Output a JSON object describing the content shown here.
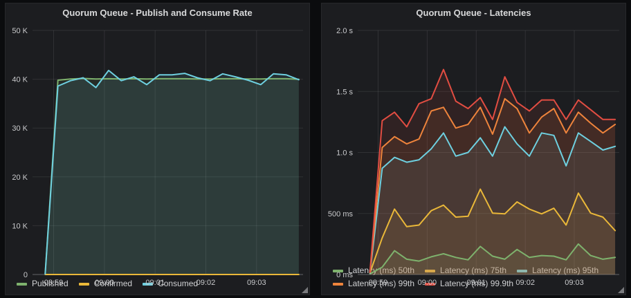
{
  "theme": {
    "page_bg": "#0b0c0e",
    "panel_bg": "#1c1d20",
    "title_color": "#d8d9da",
    "tick_color": "#c9cacc",
    "grid_color": "rgba(255,255,255,0.09)",
    "axis_color": "rgba(255,255,255,0.32)"
  },
  "panels": [
    {
      "title": "Quorum Queue - Publish and Consume Rate",
      "chart_data": {
        "type": "area",
        "title": "Quorum Queue - Publish and Consume Rate",
        "xlabel": "",
        "ylabel": "",
        "unit": "messages/s",
        "grid": true,
        "legend_position": "bottom",
        "fill_opacity": 0.1,
        "ylim": [
          0,
          50000
        ],
        "y_ticks": [
          {
            "label": "0",
            "v": 0
          },
          {
            "label": "10 K",
            "v": 10000
          },
          {
            "label": "20 K",
            "v": 20000
          },
          {
            "label": "30 K",
            "v": 30000
          },
          {
            "label": "40 K",
            "v": 40000
          },
          {
            "label": "50 K",
            "v": 50000
          }
        ],
        "x_domain_s": [
          -25,
          295
        ],
        "x_ticks": [
          {
            "label": "08:59",
            "t": 0
          },
          {
            "label": "09:00",
            "t": 60
          },
          {
            "label": "09:01",
            "t": 120
          },
          {
            "label": "09:02",
            "t": 180
          },
          {
            "label": "09:03",
            "t": 240
          }
        ],
        "x_points_s": [
          -10,
          5,
          20,
          35,
          50,
          65,
          80,
          95,
          110,
          125,
          140,
          155,
          170,
          185,
          200,
          215,
          230,
          245,
          260,
          275,
          290
        ],
        "series": [
          {
            "name": "Published",
            "color": "#7EB26D",
            "values": [
              200,
              39800,
              40050,
              40150,
              40050,
              40100,
              40050,
              40100,
              40050,
              40100,
              40100,
              40100,
              40050,
              40050,
              40100,
              40100,
              40050,
              40050,
              40100,
              40100,
              40000
            ]
          },
          {
            "name": "Confirmed",
            "color": "#EAB839",
            "values": [
              0,
              0,
              0,
              0,
              0,
              0,
              0,
              0,
              0,
              0,
              0,
              0,
              0,
              0,
              0,
              0,
              0,
              0,
              0,
              0,
              0
            ]
          },
          {
            "name": "Consumed",
            "color": "#6ED0E0",
            "values": [
              100,
              38600,
              39700,
              40300,
              38300,
              41800,
              39700,
              40500,
              38900,
              40900,
              40900,
              41200,
              40300,
              39700,
              41100,
              40500,
              39800,
              38900,
              41100,
              40900,
              39900
            ]
          }
        ]
      }
    },
    {
      "title": "Quorum Queue - Latencies",
      "chart_data": {
        "type": "area",
        "title": "Quorum Queue - Latencies",
        "xlabel": "",
        "ylabel": "",
        "unit": "ms",
        "grid": true,
        "legend_position": "bottom",
        "fill_opacity": 0.1,
        "ylim": [
          0,
          2000
        ],
        "y_ticks": [
          {
            "label": "0 ms",
            "v": 0
          },
          {
            "label": "500 ms",
            "v": 500
          },
          {
            "label": "1.0 s",
            "v": 1000
          },
          {
            "label": "1.5 s",
            "v": 1500
          },
          {
            "label": "2.0 s",
            "v": 2000
          }
        ],
        "x_domain_s": [
          -25,
          295
        ],
        "x_ticks": [
          {
            "label": "08:59",
            "t": 0
          },
          {
            "label": "09:00",
            "t": 60
          },
          {
            "label": "09:01",
            "t": 120
          },
          {
            "label": "09:02",
            "t": 180
          },
          {
            "label": "09:03",
            "t": 240
          }
        ],
        "x_points_s": [
          -10,
          5,
          20,
          35,
          50,
          65,
          80,
          95,
          110,
          125,
          140,
          155,
          170,
          185,
          200,
          215,
          230,
          245,
          260,
          275,
          290
        ],
        "series": [
          {
            "name": "Latency (ms) 50th",
            "color": "#7EB26D",
            "values": [
              5,
              60,
              195,
              125,
              110,
              145,
              170,
              140,
              120,
              230,
              150,
              125,
              205,
              140,
              155,
              150,
              120,
              250,
              155,
              125,
              140
            ]
          },
          {
            "name": "Latency (ms) 75th",
            "color": "#EAB839",
            "values": [
              13,
              300,
              536,
              392,
              405,
              523,
              568,
              470,
              477,
              699,
              503,
              497,
              595,
              536,
              497,
              543,
              405,
              667,
              503,
              470,
              360
            ]
          },
          {
            "name": "Latency (ms) 95th",
            "color": "#6ED0E0",
            "values": [
              10,
              870,
              960,
              920,
              940,
              1030,
              1160,
              970,
              1000,
              1120,
              970,
              1210,
              1070,
              970,
              1160,
              1140,
              890,
              1160,
              1090,
              1020,
              1050
            ]
          },
          {
            "name": "Latency (ms) 99th",
            "color": "#EF843C",
            "values": [
              15,
              1040,
              1130,
              1070,
              1110,
              1340,
              1370,
              1200,
              1230,
              1370,
              1150,
              1440,
              1360,
              1160,
              1290,
              1360,
              1160,
              1330,
              1240,
              1160,
              1230
            ]
          },
          {
            "name": "Latency (ms) 99.9th",
            "color": "#E24D42",
            "values": [
              20,
              1260,
              1330,
              1210,
              1400,
              1440,
              1680,
              1420,
              1360,
              1450,
              1270,
              1620,
              1410,
              1340,
              1430,
              1430,
              1270,
              1430,
              1350,
              1270,
              1270
            ]
          }
        ]
      }
    }
  ]
}
